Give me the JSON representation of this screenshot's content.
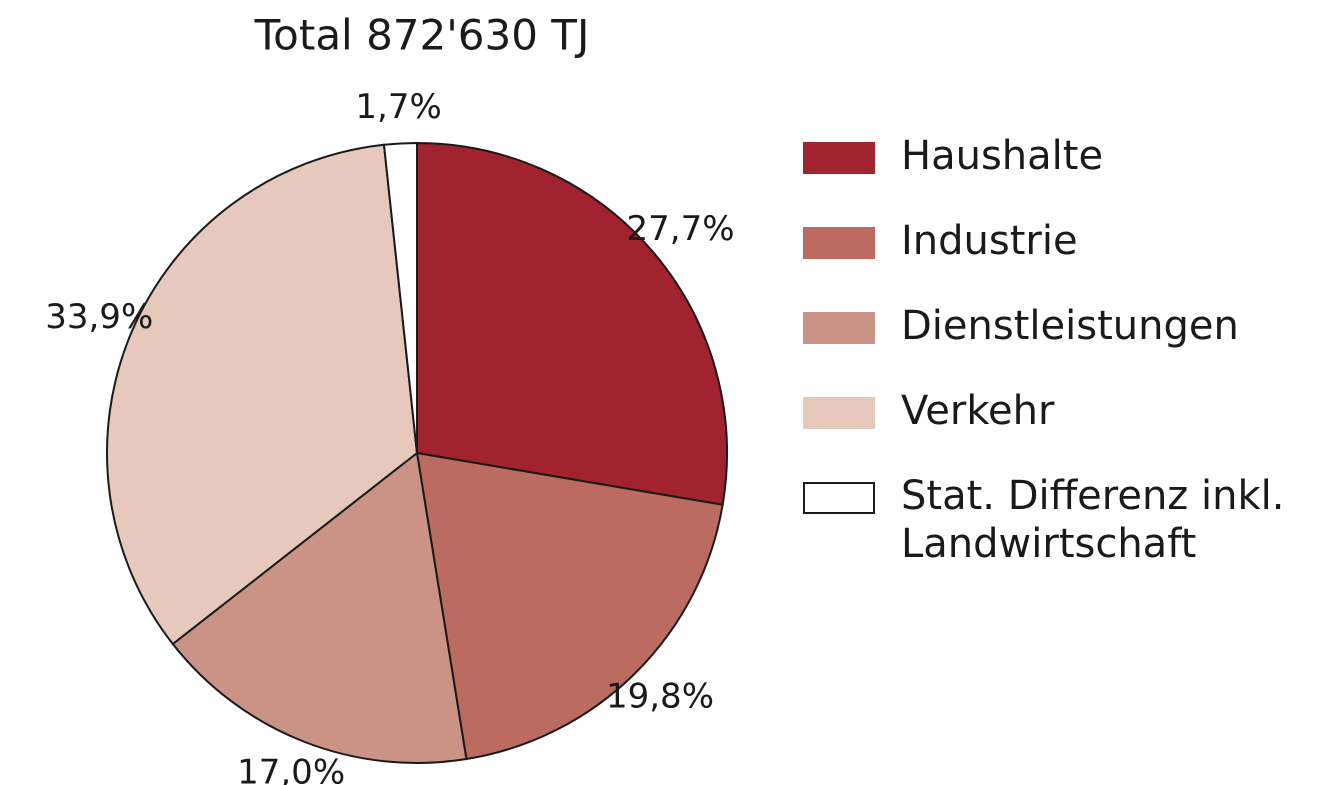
{
  "chart_data": {
    "type": "pie",
    "title": "Total 872'630 TJ",
    "categories": [
      "Haushalte",
      "Industrie",
      "Dienstleistungen",
      "Verkehr",
      "Stat. Differenz inkl. Landwirtschaft"
    ],
    "values": [
      27.7,
      19.8,
      17.0,
      33.9,
      1.7
    ],
    "value_labels": [
      "27,7%",
      "19,8%",
      "17,0%",
      "33,9%",
      "1,7%"
    ],
    "colors": [
      "#a0232f",
      "#bc6b60",
      "#cb9386",
      "#e6c8bd",
      "#ffffff"
    ],
    "legend": "right"
  }
}
